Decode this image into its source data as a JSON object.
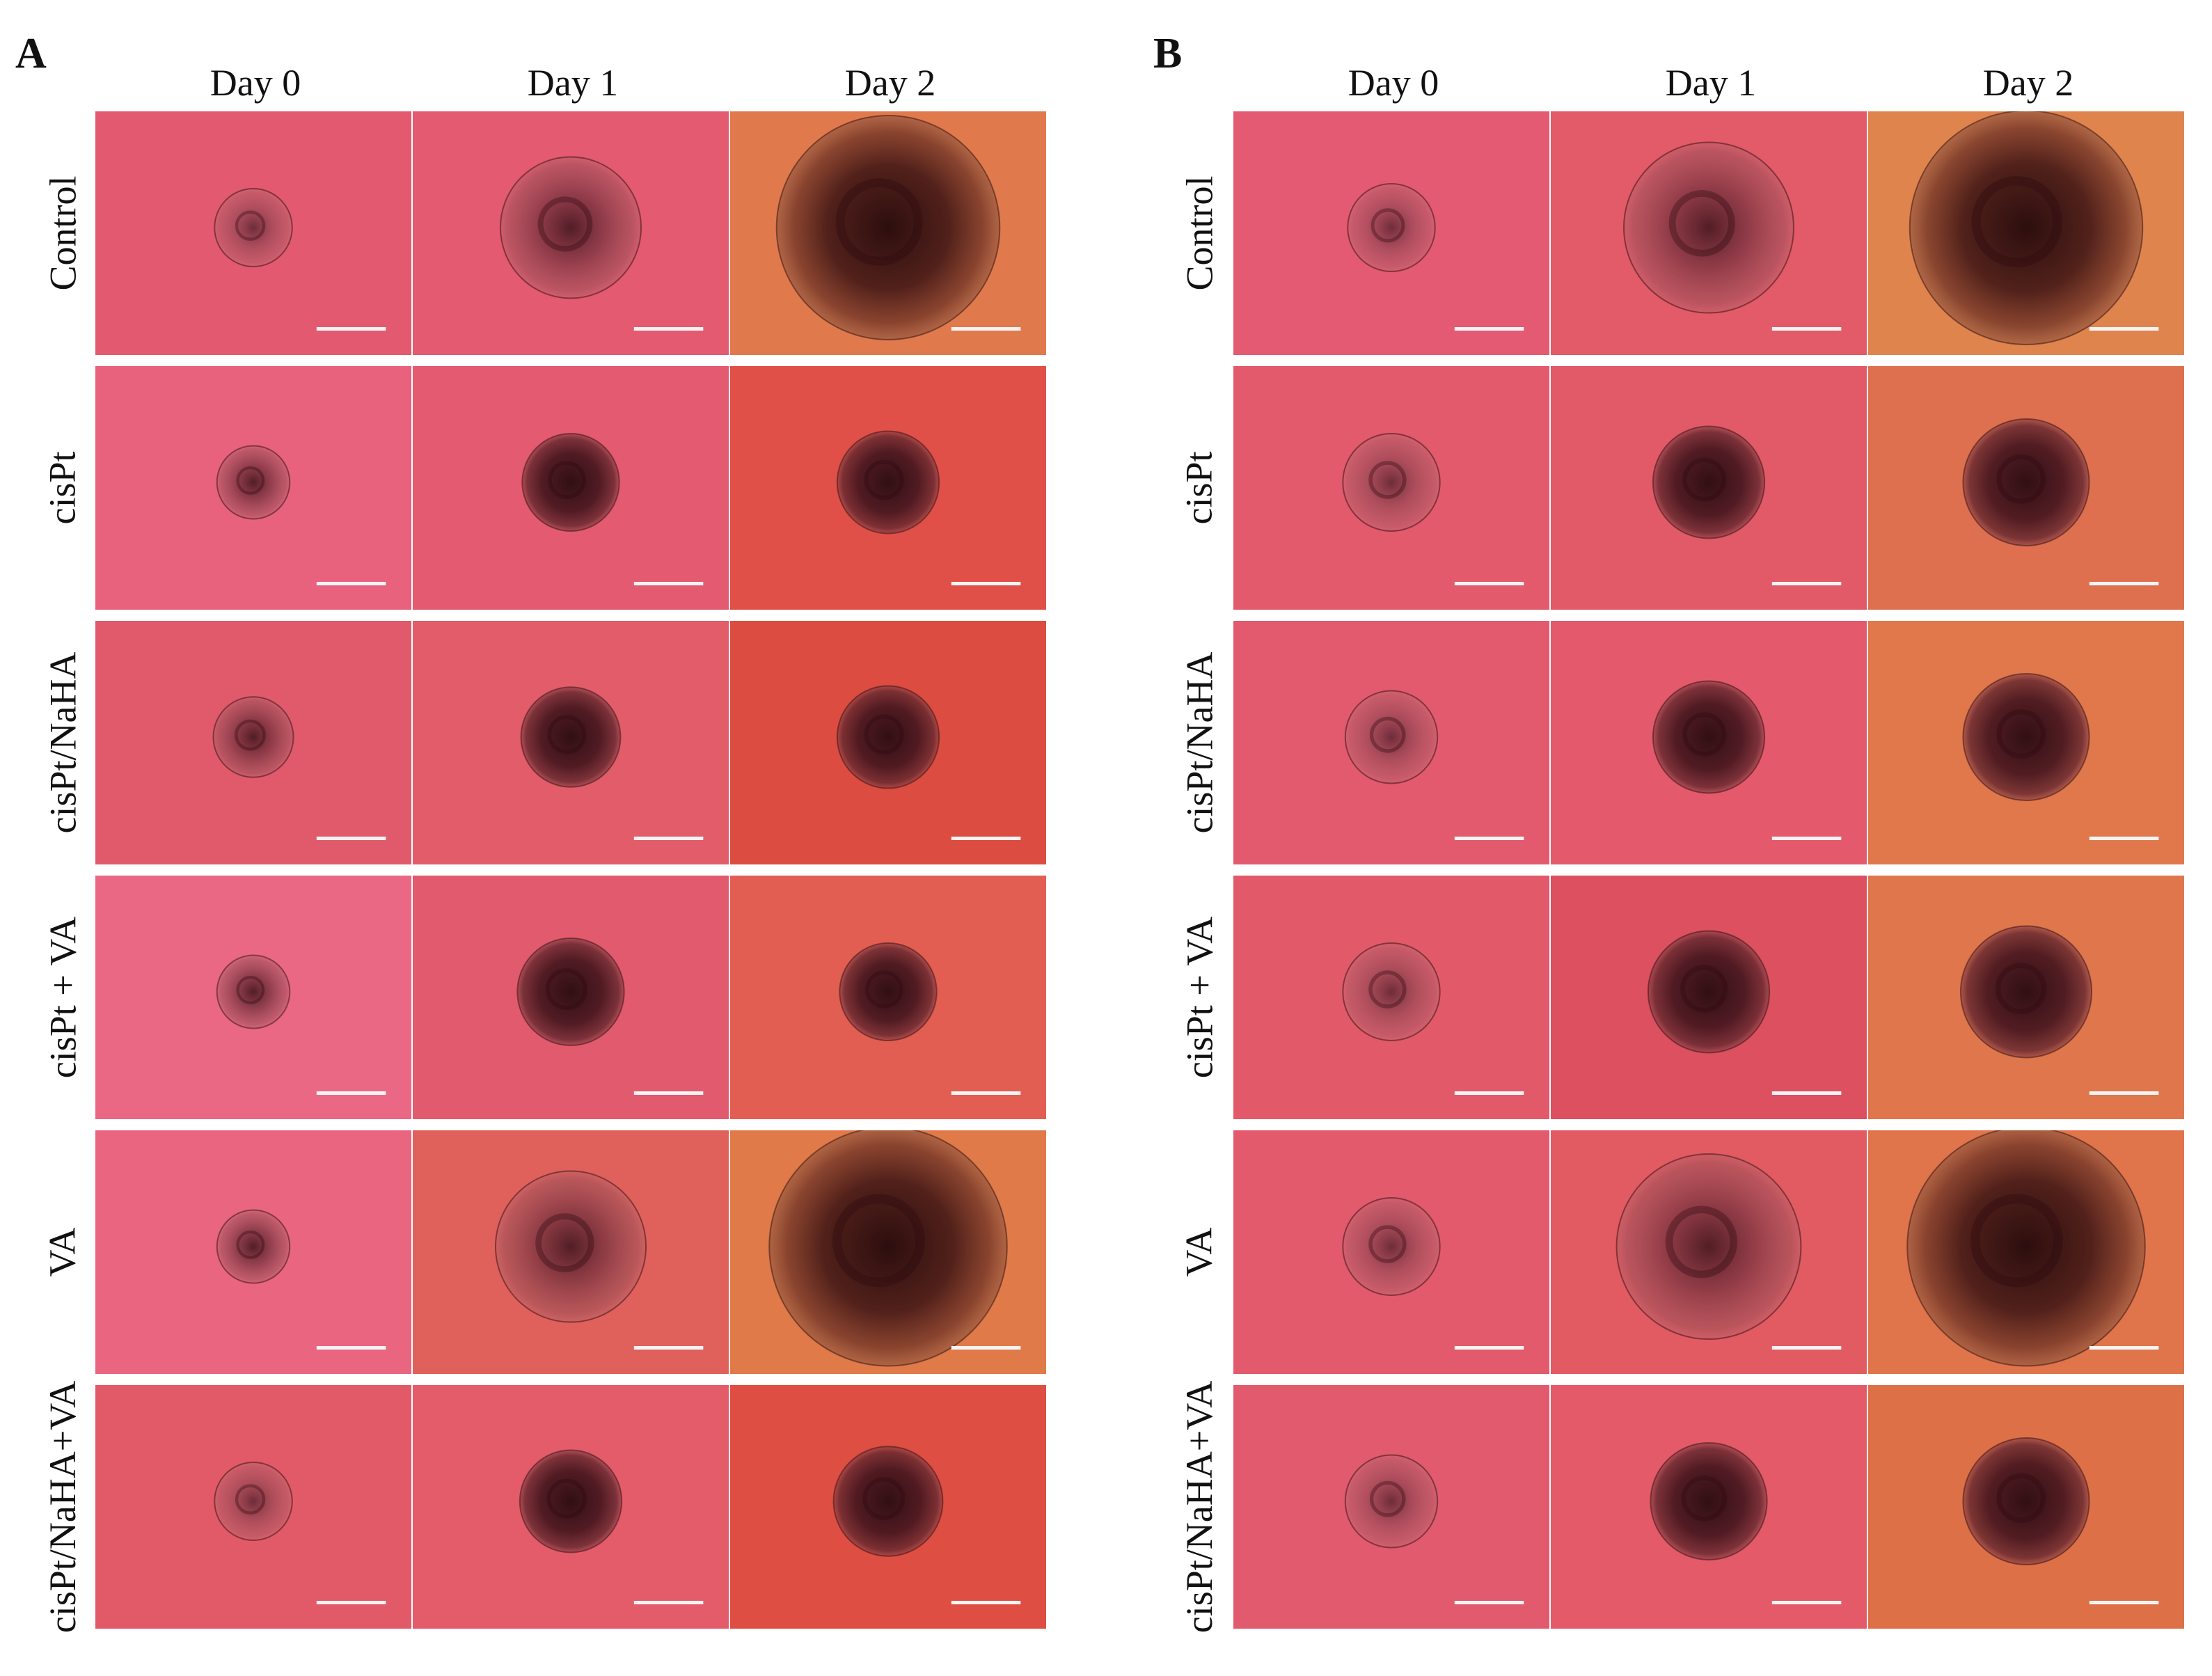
{
  "colors": {
    "magenta": "#e45a74",
    "pink": "#e8627c",
    "red": "#de5448",
    "orange": "#e2814c",
    "spheroid_dark": "#3b1418",
    "spheroid_mid": "#6a2a2c",
    "scale_bar": "#f4f4f4"
  },
  "panels": [
    {
      "letter": "A",
      "columns": [
        "Day 0",
        "Day 1",
        "Day 2"
      ],
      "rows": [
        {
          "label": "Control",
          "cells": [
            {
              "bg": "#e35a70",
              "size": 0.32,
              "tone": "light"
            },
            {
              "bg": "#e45a70",
              "size": 0.58,
              "tone": "medium"
            },
            {
              "bg": "#e07a4c",
              "size": 0.92,
              "tone": "large"
            }
          ]
        },
        {
          "label": "cisPt",
          "cells": [
            {
              "bg": "#e8627e",
              "size": 0.3,
              "tone": "medium"
            },
            {
              "bg": "#e45a70",
              "size": 0.4,
              "tone": "dark"
            },
            {
              "bg": "#e05048",
              "size": 0.42,
              "tone": "dark"
            }
          ]
        },
        {
          "label": "cisPt/NaHA",
          "cells": [
            {
              "bg": "#e05a6c",
              "size": 0.33,
              "tone": "medium"
            },
            {
              "bg": "#e25c6a",
              "size": 0.41,
              "tone": "dark"
            },
            {
              "bg": "#dc4c40",
              "size": 0.42,
              "tone": "dark"
            }
          ]
        },
        {
          "label": "cisPt + VA",
          "cells": [
            {
              "bg": "#ea6884",
              "size": 0.3,
              "tone": "medium"
            },
            {
              "bg": "#e25a6e",
              "size": 0.44,
              "tone": "dark"
            },
            {
              "bg": "#e25e52",
              "size": 0.4,
              "tone": "dark"
            }
          ]
        },
        {
          "label": "VA",
          "cells": [
            {
              "bg": "#ea6680",
              "size": 0.3,
              "tone": "medium"
            },
            {
              "bg": "#e0605c",
              "size": 0.62,
              "tone": "medium"
            },
            {
              "bg": "#e07a48",
              "size": 0.98,
              "tone": "large"
            }
          ]
        },
        {
          "label": "cisPt/NaHA+VA",
          "cells": [
            {
              "bg": "#e25a68",
              "size": 0.32,
              "tone": "light"
            },
            {
              "bg": "#e45c6a",
              "size": 0.42,
              "tone": "dark"
            },
            {
              "bg": "#de4e42",
              "size": 0.45,
              "tone": "dark"
            }
          ]
        }
      ]
    },
    {
      "letter": "B",
      "columns": [
        "Day 0",
        "Day 1",
        "Day 2"
      ],
      "rows": [
        {
          "label": "Control",
          "cells": [
            {
              "bg": "#e45a72",
              "size": 0.36,
              "tone": "light"
            },
            {
              "bg": "#e35a68",
              "size": 0.7,
              "tone": "medium"
            },
            {
              "bg": "#e0844e",
              "size": 0.96,
              "tone": "large"
            }
          ]
        },
        {
          "label": "cisPt",
          "cells": [
            {
              "bg": "#e25a6c",
              "size": 0.4,
              "tone": "light"
            },
            {
              "bg": "#e25a68",
              "size": 0.46,
              "tone": "dark"
            },
            {
              "bg": "#de7050",
              "size": 0.52,
              "tone": "dark"
            }
          ]
        },
        {
          "label": "cisPt/NaHA",
          "cells": [
            {
              "bg": "#e35a6e",
              "size": 0.38,
              "tone": "light"
            },
            {
              "bg": "#e45a6c",
              "size": 0.46,
              "tone": "dark"
            },
            {
              "bg": "#e0784c",
              "size": 0.52,
              "tone": "dark"
            }
          ]
        },
        {
          "label": "cisPt + VA",
          "cells": [
            {
              "bg": "#e25a6a",
              "size": 0.4,
              "tone": "light"
            },
            {
              "bg": "#dc5060",
              "size": 0.5,
              "tone": "dark"
            },
            {
              "bg": "#e0764c",
              "size": 0.54,
              "tone": "dark"
            }
          ]
        },
        {
          "label": "VA",
          "cells": [
            {
              "bg": "#e25a6c",
              "size": 0.4,
              "tone": "light"
            },
            {
              "bg": "#e25a62",
              "size": 0.76,
              "tone": "medium"
            },
            {
              "bg": "#e0744a",
              "size": 0.98,
              "tone": "large"
            }
          ]
        },
        {
          "label": "cisPt/NaHA+VA",
          "cells": [
            {
              "bg": "#e25a6e",
              "size": 0.38,
              "tone": "light"
            },
            {
              "bg": "#e45a68",
              "size": 0.48,
              "tone": "dark"
            },
            {
              "bg": "#de7048",
              "size": 0.52,
              "tone": "dark"
            }
          ]
        }
      ]
    }
  ]
}
